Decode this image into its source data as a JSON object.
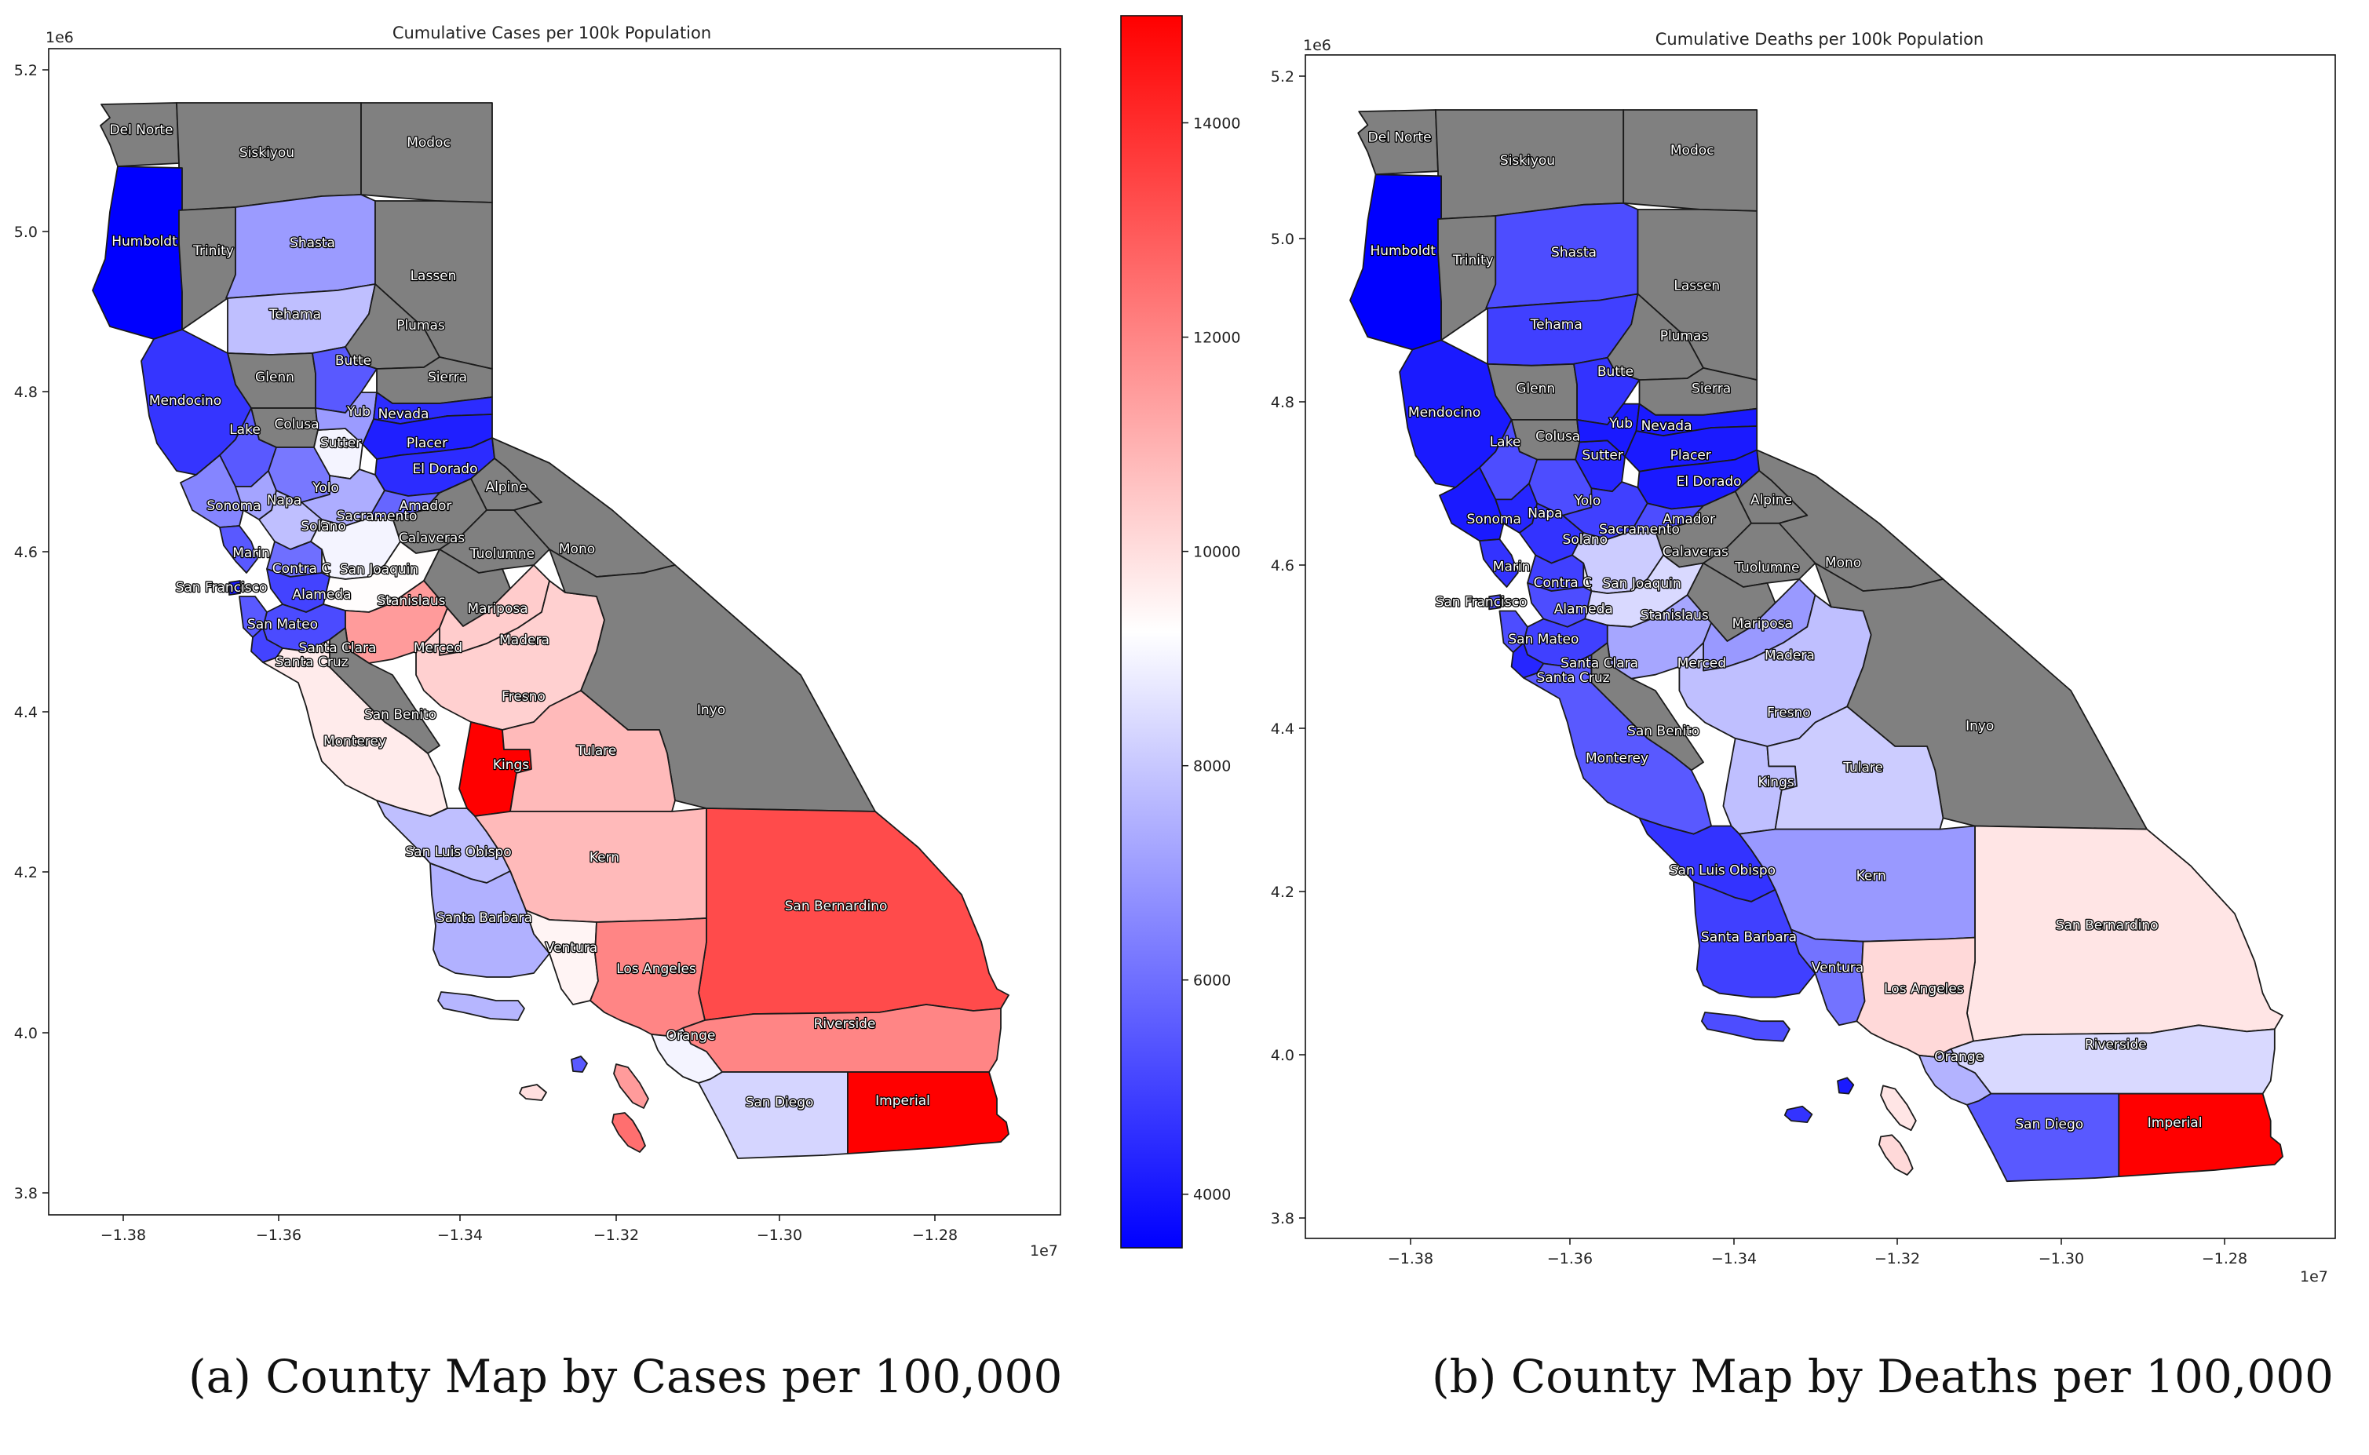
{
  "captions": {
    "a": "(a) County Map by Cases per 100,000",
    "b": "(b) County Map by Deaths per 100,000"
  },
  "colors": {
    "no_data": "#808080",
    "cmap_low": "#0000ff",
    "cmap_mid": "#ffffff",
    "cmap_high": "#ff0000",
    "outline": "#1a1a1a"
  },
  "chart_data": [
    {
      "type": "choropleth-map",
      "title": "Cumulative Cases per 100k Population",
      "x_ticks": [
        "−1.38",
        "−1.36",
        "−1.34",
        "−1.32",
        "−1.30",
        "−1.28"
      ],
      "x_tick_values": [
        -13800000,
        -13600000,
        -13400000,
        -13200000,
        -13000000,
        -12800000
      ],
      "y_ticks": [
        "5.2",
        "5.0",
        "4.8",
        "4.6",
        "4.4",
        "4.2",
        "4.0",
        "3.8"
      ],
      "y_tick_values": [
        5200000,
        5000000,
        4800000,
        4600000,
        4400000,
        4200000,
        4000000,
        3800000
      ],
      "x_offset": "1e7",
      "y_offset": "1e6",
      "colorbar": {
        "range": [
          3500,
          15000
        ],
        "ticks": [
          "4000",
          "6000",
          "8000",
          "10000",
          "12000",
          "14000"
        ],
        "tick_values": [
          4000,
          6000,
          8000,
          10000,
          12000,
          14000
        ]
      },
      "counties": {
        "Del Norte": null,
        "Siskiyou": null,
        "Modoc": null,
        "Humboldt": 3500,
        "Trinity": null,
        "Shasta": 7000,
        "Lassen": null,
        "Tehama": 7800,
        "Plumas": null,
        "Butte": 5500,
        "Glenn": null,
        "Sierra": null,
        "Mendocino": 4700,
        "Colusa": null,
        "Sutter": 9000,
        "Yuba": 7000,
        "Nevada": 4500,
        "Lake": 5500,
        "Placer": 4200,
        "El Dorado": 4500,
        "Alpine": null,
        "Sonoma": 6500,
        "Napa": 7200,
        "Yolo": 6200,
        "Sacramento": 7400,
        "Amador": 5800,
        "Calaveras": null,
        "Tuolumne": null,
        "Mono": null,
        "Marin": 5500,
        "Solano": 7800,
        "Contra Costa": 6000,
        "San Joaquin": 9000,
        "San Francisco": 4000,
        "Alameda": 5000,
        "Stanislaus": 9300,
        "Mariposa": null,
        "San Mateo": 5500,
        "Santa Clara": 5200,
        "Santa Cruz": 5000,
        "Merced": 11500,
        "Madera": 10400,
        "Fresno": 10300,
        "Inyo": null,
        "San Benito": null,
        "Monterey": 9700,
        "Kings": 15000,
        "Tulare": 10800,
        "San Luis Obispo": 7800,
        "Kern": 10800,
        "San Bernardino": 13300,
        "Santa Barbara": 7500,
        "Ventura": 9500,
        "Los Angeles": 12000,
        "Riverside": 12000,
        "Orange": 9000,
        "San Diego": 8300,
        "Imperial": 15000
      },
      "islands_channel": 7600,
      "islands_south": [
        5500,
        10000,
        11500,
        12500
      ]
    },
    {
      "type": "choropleth-map",
      "title": "Cumulative Deaths per 100k Population",
      "x_ticks": [
        "−1.38",
        "−1.36",
        "−1.34",
        "−1.32",
        "−1.30",
        "−1.28"
      ],
      "x_tick_values": [
        -13800000,
        -13600000,
        -13400000,
        -13200000,
        -13000000,
        -12800000
      ],
      "y_ticks": [
        "5.2",
        "5.0",
        "4.8",
        "4.6",
        "4.4",
        "4.2",
        "4.0",
        "3.8"
      ],
      "y_tick_values": [
        5200000,
        5000000,
        4800000,
        4600000,
        4400000,
        4200000,
        4000000,
        3800000
      ],
      "x_offset": "1e7",
      "y_offset": "1e6",
      "counties": {
        "Del Norte": null,
        "Siskiyou": null,
        "Modoc": null,
        "Humboldt": 0.0,
        "Trinity": null,
        "Shasta": 0.3,
        "Lassen": null,
        "Tehama": 0.25,
        "Plumas": null,
        "Butte": 0.2,
        "Glenn": null,
        "Sierra": null,
        "Mendocino": 0.1,
        "Colusa": null,
        "Sutter": 0.15,
        "Yuba": 0.1,
        "Nevada": 0.1,
        "Lake": 0.3,
        "Placer": 0.1,
        "El Dorado": 0.1,
        "Alpine": null,
        "Sonoma": 0.1,
        "Napa": 0.15,
        "Yolo": 0.3,
        "Sacramento": 0.25,
        "Amador": 0.3,
        "Calaveras": null,
        "Tuolumne": null,
        "Mono": null,
        "Marin": 0.2,
        "Solano": 0.2,
        "Contra Costa": 0.25,
        "San Joaquin": 0.8,
        "San Francisco": 0.3,
        "Alameda": 0.3,
        "Stanislaus": 0.85,
        "Mariposa": null,
        "San Mateo": 0.3,
        "Santa Clara": 0.25,
        "Santa Cruz": 0.15,
        "Merced": 0.65,
        "Madera": 0.6,
        "Fresno": 0.75,
        "Inyo": null,
        "San Benito": null,
        "Monterey": 0.35,
        "Kings": 0.75,
        "Tulare": 0.8,
        "San Luis Obispo": 0.2,
        "Kern": 0.6,
        "San Bernardino": 1.1,
        "Santa Barbara": 0.25,
        "Ventura": 0.45,
        "Los Angeles": 1.15,
        "Riverside": 0.85,
        "Orange": 0.7,
        "San Diego": 0.35,
        "Imperial": 2.0
      },
      "islands_channel": 0.3,
      "islands_south": [
        0.1,
        0.2,
        1.1,
        1.15
      ]
    }
  ]
}
